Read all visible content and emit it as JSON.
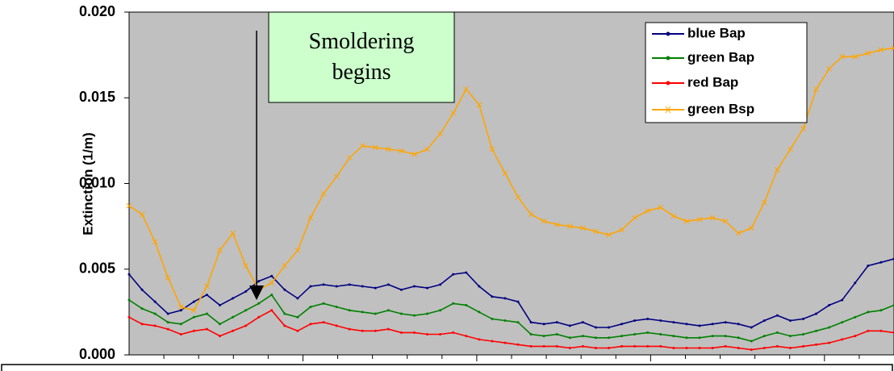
{
  "chart_data": {
    "type": "line",
    "ylabel": "Extinction (1/m)",
    "annotation": "Smoldering begins",
    "ylim": [
      0,
      0.02
    ],
    "yticks": [
      {
        "value": 0,
        "label": "0.000"
      },
      {
        "value": 0.005,
        "label": "0.005"
      },
      {
        "value": 0.01,
        "label": "0.010"
      },
      {
        "value": 0.015,
        "label": "0.015"
      },
      {
        "value": 0.02,
        "label": "0.020"
      }
    ],
    "grid": false,
    "legend": "upper right",
    "series": [
      {
        "name": "blue Bap",
        "color": "#000080",
        "marker": "dot",
        "values": [
          0.0047,
          0.0038,
          0.0031,
          0.0024,
          0.0026,
          0.0031,
          0.0035,
          0.0029,
          0.0033,
          0.0037,
          0.0043,
          0.0046,
          0.0038,
          0.0033,
          0.004,
          0.0041,
          0.004,
          0.0041,
          0.004,
          0.0039,
          0.0041,
          0.0038,
          0.004,
          0.0039,
          0.0041,
          0.0047,
          0.0048,
          0.004,
          0.0034,
          0.0033,
          0.0031,
          0.0019,
          0.0018,
          0.0019,
          0.0017,
          0.0019,
          0.0016,
          0.0016,
          0.0018,
          0.002,
          0.0021,
          0.002,
          0.0019,
          0.0018,
          0.0017,
          0.0018,
          0.0019,
          0.0018,
          0.0016,
          0.002,
          0.0023,
          0.002,
          0.0021,
          0.0024,
          0.0029,
          0.0032,
          0.0042,
          0.0052,
          0.0054,
          0.0056
        ]
      },
      {
        "name": "green Bap",
        "color": "#008000",
        "marker": "dot",
        "values": [
          0.0032,
          0.0027,
          0.0024,
          0.0019,
          0.0018,
          0.0022,
          0.0024,
          0.0018,
          0.0022,
          0.0026,
          0.003,
          0.0035,
          0.0024,
          0.0022,
          0.0028,
          0.003,
          0.0028,
          0.0026,
          0.0025,
          0.0024,
          0.0026,
          0.0024,
          0.0023,
          0.0024,
          0.0026,
          0.003,
          0.0029,
          0.0025,
          0.0021,
          0.002,
          0.0019,
          0.0012,
          0.0011,
          0.0012,
          0.001,
          0.0011,
          0.001,
          0.001,
          0.0011,
          0.0012,
          0.0013,
          0.0012,
          0.0011,
          0.001,
          0.001,
          0.0011,
          0.0011,
          0.001,
          0.0008,
          0.0011,
          0.0013,
          0.0011,
          0.0012,
          0.0014,
          0.0016,
          0.0019,
          0.0022,
          0.0025,
          0.0026,
          0.0029
        ]
      },
      {
        "name": "red Bap",
        "color": "#ff0000",
        "marker": "dot",
        "values": [
          0.0022,
          0.0018,
          0.0017,
          0.0015,
          0.0012,
          0.0014,
          0.0015,
          0.0011,
          0.0014,
          0.0017,
          0.0022,
          0.0026,
          0.0017,
          0.0014,
          0.0018,
          0.0019,
          0.0017,
          0.0015,
          0.0014,
          0.0014,
          0.0015,
          0.0013,
          0.0013,
          0.0012,
          0.0012,
          0.0013,
          0.0011,
          0.0009,
          0.0008,
          0.0007,
          0.0006,
          0.0005,
          0.0005,
          0.0005,
          0.0004,
          0.0005,
          0.0004,
          0.0004,
          0.0005,
          0.0005,
          0.0005,
          0.0005,
          0.0004,
          0.0004,
          0.0004,
          0.0004,
          0.0005,
          0.0004,
          0.0003,
          0.0004,
          0.0005,
          0.0004,
          0.0005,
          0.0006,
          0.0007,
          0.0009,
          0.0011,
          0.0014,
          0.0014,
          0.0013
        ]
      },
      {
        "name": "green Bsp",
        "color": "#ffa500",
        "marker": "x",
        "values": [
          0.0087,
          0.0082,
          0.0066,
          0.0045,
          0.0028,
          0.0026,
          0.004,
          0.0061,
          0.0071,
          0.0052,
          0.0038,
          0.0042,
          0.0052,
          0.0061,
          0.008,
          0.0094,
          0.0104,
          0.0115,
          0.0122,
          0.0121,
          0.012,
          0.0119,
          0.0117,
          0.012,
          0.0129,
          0.0141,
          0.0155,
          0.0146,
          0.012,
          0.0106,
          0.0092,
          0.0082,
          0.0078,
          0.0076,
          0.0075,
          0.0074,
          0.0072,
          0.007,
          0.0073,
          0.008,
          0.0084,
          0.0086,
          0.0081,
          0.0078,
          0.0079,
          0.008,
          0.0078,
          0.0071,
          0.0074,
          0.0089,
          0.0108,
          0.012,
          0.0132,
          0.0155,
          0.0167,
          0.0174,
          0.0174,
          0.0176,
          0.0178,
          0.0179
        ]
      }
    ]
  }
}
